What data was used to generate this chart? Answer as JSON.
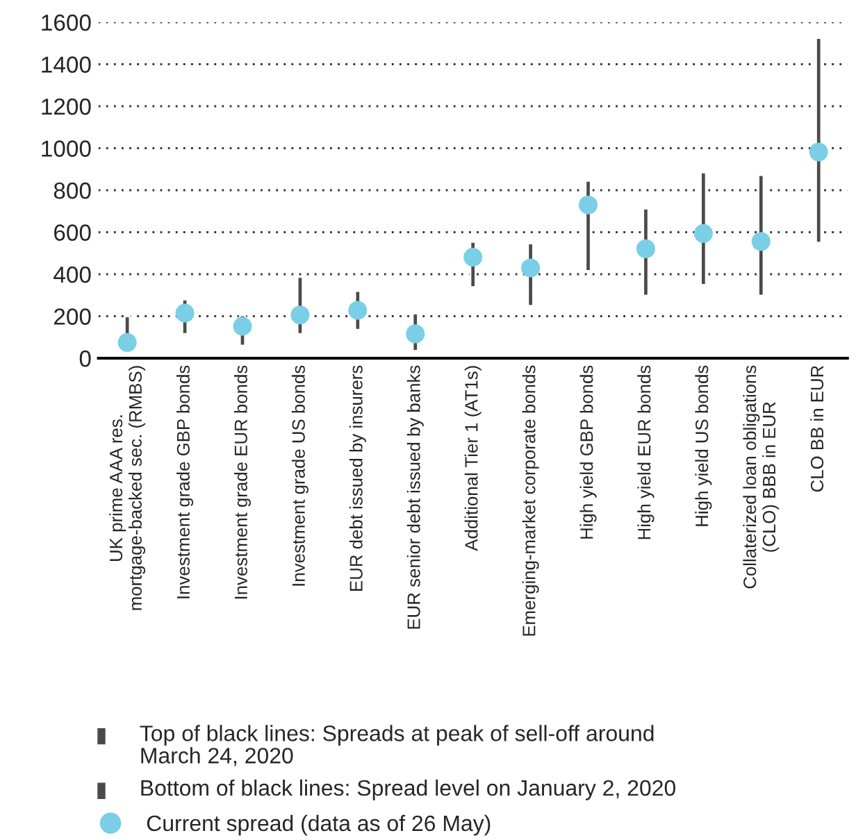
{
  "chart_data": {
    "type": "bar",
    "categories": [
      "UK prime AAA res.\nmortgage-backed sec. (RMBS)",
      "Investment grade GBP bonds",
      "Investment grade EUR bonds",
      "Investment grade US bonds",
      "EUR debt issued by insurers",
      "EUR senior debt issued by banks",
      "Additional Tier 1 (AT1s)",
      "Emerging-market corporate bonds",
      "High yield GBP bonds",
      "High yield EUR bonds",
      "High yield US bonds",
      "Collaterized loan obligations\n(CLO) BBB in EUR",
      "CLO BB in EUR"
    ],
    "series": [
      {
        "color": "#4a4a4a",
        "base": [
          80,
          115,
          60,
          115,
          135,
          35,
          338,
          249,
          415,
          298,
          349,
          298,
          550
        ],
        "values": [
          120,
          165,
          145,
          272,
          185,
          178,
          216,
          298,
          430,
          415,
          536,
          574,
          975
        ]
      },
      {
        "type": "scatter",
        "name": "Current spread (data as of 26 May)",
        "color": "#7acfe6",
        "values": [
          75,
          215,
          152,
          206,
          228,
          116,
          481,
          430,
          730,
          521,
          594,
          556,
          982
        ]
      }
    ],
    "ylim": [
      0,
      1600
    ],
    "yticks": [
      0,
      200,
      400,
      600,
      800,
      1000,
      1200,
      1400,
      1600
    ],
    "grid": "y",
    "legend": "bottom",
    "marker": "circle",
    "annotations": [
      "Top of black lines: Spreads at peak of sell-off around\nMarch 24, 2020",
      "Bottom of black lines: Spread level on January 2, 2020"
    ]
  }
}
